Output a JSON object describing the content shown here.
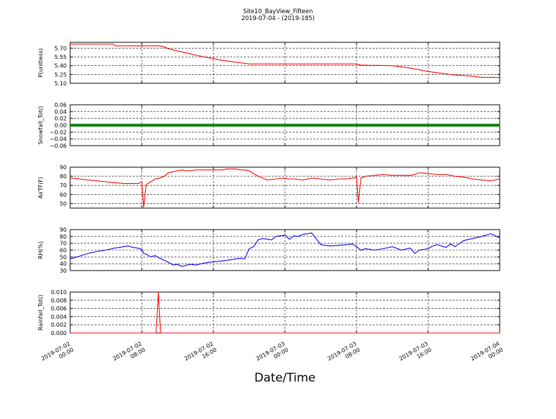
{
  "title_line1": "Site10_BayView_Fifteen",
  "title_line2": "2019-07-04 - (2019-185)",
  "xlabel": "Date/Time",
  "x_tick_labels": [
    [
      "2019-07-02",
      "00:00"
    ],
    [
      "2019-07-02",
      "08:00"
    ],
    [
      "2019-07-02",
      "16:00"
    ],
    [
      "2019-07-03",
      "00:00"
    ],
    [
      "2019-07-03",
      "08:00"
    ],
    [
      "2019-07-03",
      "16:00"
    ],
    [
      "2019-07-04",
      "00:00"
    ]
  ],
  "colors": {
    "red": "#ff0000",
    "green": "#008000",
    "blue": "#0000ff",
    "grid": "#000000"
  },
  "chart_data": [
    {
      "type": "line",
      "ylabel": "P(unitless)",
      "ylim": [
        5.1,
        5.8
      ],
      "yticks": [
        "5.10",
        "5.25",
        "5.40",
        "5.55",
        "5.70"
      ],
      "ytick_values": [
        5.1,
        5.25,
        5.4,
        5.55,
        5.7
      ],
      "xlim": [
        0,
        48
      ],
      "grid": true,
      "color": "red",
      "series": [
        {
          "x": [
            0,
            4.8,
            5,
            10,
            10.5,
            11,
            12,
            13,
            14,
            15,
            16,
            17,
            18,
            19,
            20,
            25,
            30,
            32,
            32.5,
            36,
            37,
            38,
            39,
            40,
            41,
            42,
            43,
            44,
            45,
            46,
            47,
            48
          ],
          "values": [
            5.77,
            5.77,
            5.74,
            5.74,
            5.72,
            5.69,
            5.65,
            5.62,
            5.58,
            5.55,
            5.52,
            5.49,
            5.47,
            5.45,
            5.43,
            5.43,
            5.43,
            5.43,
            5.41,
            5.4,
            5.38,
            5.36,
            5.33,
            5.3,
            5.28,
            5.26,
            5.24,
            5.23,
            5.22,
            5.2,
            5.2,
            5.2
          ]
        }
      ]
    },
    {
      "type": "line",
      "ylabel": "Snowfall_Tot()",
      "ylim": [
        -0.06,
        0.06
      ],
      "yticks": [
        "−0.06",
        "−0.04",
        "−0.02",
        "0.00",
        "0.02",
        "0.04",
        "0.06"
      ],
      "ytick_values": [
        -0.06,
        -0.04,
        -0.02,
        0.0,
        0.02,
        0.04,
        0.06
      ],
      "xlim": [
        0,
        48
      ],
      "grid": true,
      "color": "green",
      "series": [
        {
          "x": [
            0,
            48
          ],
          "values": [
            0,
            0
          ]
        }
      ]
    },
    {
      "type": "line",
      "ylabel": "AirTF(F)",
      "ylim": [
        45,
        90
      ],
      "yticks": [
        "50",
        "60",
        "70",
        "80",
        "90"
      ],
      "ytick_values": [
        50,
        60,
        70,
        80,
        90
      ],
      "xlim": [
        0,
        48
      ],
      "grid": true,
      "color": "red",
      "series": [
        {
          "x": [
            0,
            1,
            2,
            3,
            4,
            5,
            6,
            6.5,
            7,
            7.6,
            7.8,
            8.0,
            8.2,
            8.5,
            9,
            9.5,
            10,
            10.5,
            11,
            11.5,
            12,
            12.5,
            13,
            13.5,
            14,
            15,
            16,
            17,
            17.5,
            18,
            18.5,
            19,
            19.5,
            20,
            21,
            22,
            23,
            24,
            24.3,
            25,
            26,
            27,
            28,
            29,
            30,
            31,
            31.5,
            31.8,
            32,
            32.2,
            32.5,
            33,
            34,
            35,
            36,
            37,
            38,
            38.5,
            39,
            40,
            41,
            42,
            43,
            44,
            45,
            46,
            47,
            48
          ],
          "values": [
            78,
            77,
            76,
            75,
            74,
            73,
            72,
            72,
            72,
            72,
            73,
            74,
            46,
            71,
            74,
            77,
            78,
            80,
            84,
            85,
            86,
            87,
            86,
            86,
            87,
            87,
            87,
            87,
            88,
            88,
            88,
            87,
            87,
            86,
            80,
            76,
            77,
            78,
            77,
            77,
            76,
            78,
            77,
            76,
            77,
            77,
            78,
            78,
            80,
            51,
            78,
            80,
            81,
            82,
            81,
            81,
            81,
            82,
            84,
            83,
            82,
            82,
            80,
            79,
            77,
            76,
            75,
            77
          ]
        }
      ]
    },
    {
      "type": "line",
      "ylabel": "RH(%)",
      "ylim": [
        30,
        90
      ],
      "yticks": [
        "30",
        "40",
        "50",
        "60",
        "70",
        "80",
        "90"
      ],
      "ytick_values": [
        30,
        40,
        50,
        60,
        70,
        80,
        90
      ],
      "xlim": [
        0,
        48
      ],
      "grid": true,
      "color": "blue",
      "series": [
        {
          "x": [
            0,
            1,
            2,
            3,
            4,
            5,
            6,
            6.5,
            7,
            7.5,
            8,
            8.2,
            8.5,
            9,
            9.5,
            10,
            10.5,
            11,
            11.5,
            12,
            12.5,
            13,
            13.5,
            14,
            15,
            16,
            17,
            18,
            18.5,
            19,
            19.5,
            20,
            20.5,
            21,
            21.5,
            22,
            22.5,
            23,
            24,
            24.5,
            25,
            25.5,
            26,
            26.5,
            27,
            28,
            29,
            30,
            31,
            31.5,
            32,
            32.5,
            33,
            34,
            35,
            36,
            37,
            38,
            38.5,
            39,
            40,
            40.5,
            41,
            42,
            42.5,
            43,
            44,
            45,
            46,
            47,
            48
          ],
          "values": [
            47,
            51,
            55,
            58,
            60,
            63,
            65,
            66,
            64,
            63,
            61,
            55,
            54,
            50,
            52,
            48,
            45,
            42,
            38,
            39,
            36,
            38,
            39,
            38,
            41,
            43,
            44,
            46,
            47,
            48,
            47,
            62,
            65,
            75,
            77,
            76,
            75,
            80,
            82,
            76,
            81,
            80,
            83,
            84,
            85,
            68,
            66,
            67,
            68,
            69,
            65,
            60,
            62,
            60,
            62,
            65,
            60,
            63,
            55,
            60,
            62,
            66,
            68,
            64,
            69,
            65,
            74,
            77,
            80,
            84,
            78
          ]
        }
      ]
    },
    {
      "type": "line",
      "ylabel": "Rainfall_Tot()",
      "ylim": [
        0.0,
        0.01
      ],
      "yticks": [
        "0.000",
        "0.002",
        "0.004",
        "0.006",
        "0.008",
        "0.010"
      ],
      "ytick_values": [
        0.0,
        0.002,
        0.004,
        0.006,
        0.008,
        0.01
      ],
      "xlim": [
        0,
        48
      ],
      "grid": true,
      "color": "red",
      "series": [
        {
          "x": [
            0,
            9.6,
            9.85,
            10.1,
            48
          ],
          "values": [
            0,
            0,
            0.01,
            0,
            0
          ]
        }
      ]
    }
  ]
}
